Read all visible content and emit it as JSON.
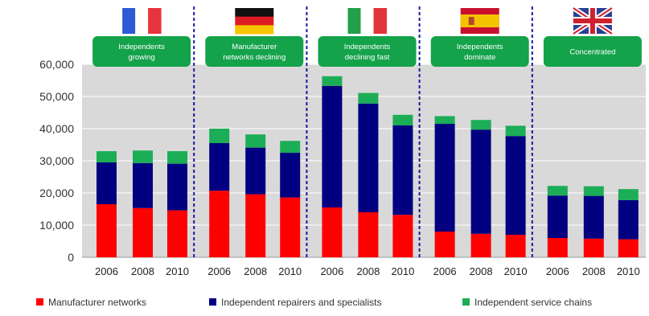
{
  "chart_data": {
    "type": "bar",
    "stacked": true,
    "grid": true,
    "ylim": [
      0,
      60000
    ],
    "yticks": [
      "0",
      "10,000",
      "20,000",
      "30,000",
      "40,000",
      "50,000",
      "60,000"
    ],
    "legend_position": "bottom",
    "groups": [
      {
        "country": "France",
        "flag": "flag-france-icon",
        "badge_lines": [
          "Independents",
          "growing"
        ],
        "categories": [
          "2006",
          "2008",
          "2010"
        ],
        "series": [
          {
            "name": "Manufacturer networks",
            "values": [
              16500,
              15300,
              14600
            ]
          },
          {
            "name": "Independent repairers and specialists",
            "values": [
              13000,
              14000,
              14500
            ]
          },
          {
            "name": "Independent service chains",
            "values": [
              3500,
              3900,
              3900
            ]
          }
        ]
      },
      {
        "country": "Germany",
        "flag": "flag-germany-icon",
        "badge_lines": [
          "Manufacturer",
          "networks declining"
        ],
        "categories": [
          "2006",
          "2008",
          "2010"
        ],
        "series": [
          {
            "name": "Manufacturer networks",
            "values": [
              20700,
              19600,
              18600
            ]
          },
          {
            "name": "Independent repairers and specialists",
            "values": [
              14800,
              14500,
              13900
            ]
          },
          {
            "name": "Independent service chains",
            "values": [
              4500,
              4100,
              3700
            ]
          }
        ]
      },
      {
        "country": "Italy",
        "flag": "flag-italy-icon",
        "badge_lines": [
          "Independents",
          "declining fast"
        ],
        "categories": [
          "2006",
          "2008",
          "2010"
        ],
        "series": [
          {
            "name": "Manufacturer networks",
            "values": [
              15500,
              14000,
              13200
            ]
          },
          {
            "name": "Independent repairers and specialists",
            "values": [
              37800,
              33800,
              27800
            ]
          },
          {
            "name": "Independent service chains",
            "values": [
              3000,
              3300,
              3300
            ]
          }
        ]
      },
      {
        "country": "Spain",
        "flag": "flag-spain-icon",
        "badge_lines": [
          "Independents",
          "dominate"
        ],
        "categories": [
          "2006",
          "2008",
          "2010"
        ],
        "series": [
          {
            "name": "Manufacturer networks",
            "values": [
              8000,
              7300,
              7000
            ]
          },
          {
            "name": "Independent repairers and specialists",
            "values": [
              33500,
              32400,
              30700
            ]
          },
          {
            "name": "Independent service chains",
            "values": [
              2400,
              3000,
              3200
            ]
          }
        ]
      },
      {
        "country": "United Kingdom",
        "flag": "flag-uk-icon",
        "badge_lines": [
          "Concentrated"
        ],
        "categories": [
          "2006",
          "2008",
          "2010"
        ],
        "series": [
          {
            "name": "Manufacturer networks",
            "values": [
              6000,
              5800,
              5600
            ]
          },
          {
            "name": "Independent repairers and specialists",
            "values": [
              13200,
              13300,
              12200
            ]
          },
          {
            "name": "Independent service chains",
            "values": [
              3000,
              3000,
              3400
            ]
          }
        ]
      }
    ],
    "legend": [
      {
        "name": "Manufacturer networks",
        "color": "#ff0000"
      },
      {
        "name": "Independent repairers and specialists",
        "color": "#000080"
      },
      {
        "name": "Independent service chains",
        "color": "#1cad57"
      }
    ]
  },
  "colors": {
    "plot_background": "#d9d9d9",
    "badge": "#14a24a",
    "separator": "#1a1aa0",
    "axis_text": "#333333"
  }
}
